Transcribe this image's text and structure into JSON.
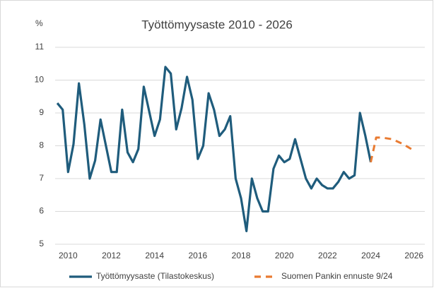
{
  "chart_data": {
    "type": "line",
    "title": "Työttömyysaste 2010 - 2026",
    "y_label": "%",
    "xlim": [
      2009.4,
      2026.5
    ],
    "xticks": [
      2010,
      2012,
      2014,
      2016,
      2018,
      2020,
      2022,
      2024,
      2026
    ],
    "ylim": [
      5,
      11
    ],
    "yticks": [
      5,
      6,
      7,
      8,
      9,
      10,
      11
    ],
    "grid": true,
    "legend": "bottom",
    "series": [
      {
        "name": "Työttömyysaste (Tilastokeskus)",
        "color": "#1f5c7c",
        "dash": false,
        "x": [
          2009.5,
          2009.75,
          2010,
          2010.25,
          2010.5,
          2010.75,
          2011,
          2011.25,
          2011.5,
          2011.75,
          2012,
          2012.25,
          2012.5,
          2012.75,
          2013,
          2013.25,
          2013.5,
          2013.75,
          2014,
          2014.25,
          2014.5,
          2014.75,
          2015,
          2015.25,
          2015.5,
          2015.75,
          2016,
          2016.25,
          2016.5,
          2016.75,
          2017,
          2017.25,
          2017.5,
          2017.75,
          2018,
          2018.25,
          2018.5,
          2018.75,
          2019,
          2019.25,
          2019.5,
          2019.75,
          2020,
          2020.25,
          2020.5,
          2020.75,
          2021,
          2021.25,
          2021.5,
          2021.75,
          2022,
          2022.25,
          2022.5,
          2022.75,
          2023,
          2023.25,
          2023.5,
          2023.75,
          2024
        ],
        "values": [
          9.3,
          9.1,
          7.2,
          8.05,
          9.9,
          8.65,
          7.0,
          7.55,
          8.8,
          8.0,
          7.2,
          7.2,
          9.1,
          7.8,
          7.5,
          7.9,
          9.8,
          9.05,
          8.3,
          8.8,
          10.4,
          10.2,
          8.5,
          9.15,
          10.1,
          9.4,
          7.6,
          8.0,
          9.6,
          9.1,
          8.3,
          8.5,
          8.9,
          7.0,
          6.4,
          5.4,
          7.0,
          6.4,
          6.0,
          6.0,
          7.3,
          7.7,
          7.5,
          7.6,
          8.2,
          7.6,
          7.0,
          6.7,
          7.0,
          6.8,
          6.7,
          6.7,
          6.9,
          7.2,
          7.0,
          7.1,
          9.0,
          8.3,
          7.5
        ]
      },
      {
        "name": "Suomen Pankin ennuste 9/24",
        "color": "#e97b32",
        "dash": true,
        "x": [
          2024,
          2024.25,
          2024.5,
          2025,
          2025.5,
          2026
        ],
        "values": [
          7.5,
          8.25,
          8.25,
          8.2,
          8.05,
          7.85
        ]
      }
    ]
  }
}
